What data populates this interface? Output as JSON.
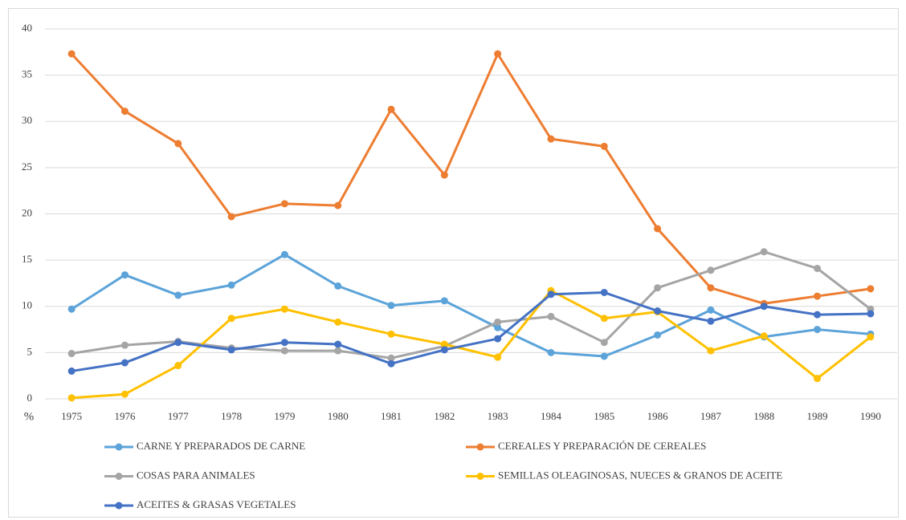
{
  "chart_data": {
    "type": "line",
    "y_label": "%",
    "categories": [
      "1975",
      "1976",
      "1977",
      "1978",
      "1979",
      "1980",
      "1981",
      "1982",
      "1983",
      "1984",
      "1985",
      "1986",
      "1987",
      "1988",
      "1989",
      "1990"
    ],
    "series": [
      {
        "name": "CARNE Y PREPARADOS DE CARNE",
        "color": "#5ba3d9",
        "values": [
          9.7,
          13.4,
          11.2,
          12.3,
          15.6,
          12.2,
          10.1,
          10.6,
          7.7,
          5.0,
          4.6,
          6.9,
          9.6,
          6.7,
          7.5,
          7.0
        ]
      },
      {
        "name": "CEREALES Y PREPARACIÓN DE CEREALES",
        "color": "#ed7d31",
        "values": [
          37.3,
          31.1,
          27.6,
          19.7,
          21.1,
          20.9,
          31.3,
          24.2,
          37.3,
          28.1,
          27.3,
          18.4,
          12.0,
          10.3,
          11.1,
          11.9
        ]
      },
      {
        "name": "COSAS PARA ANIMALES",
        "color": "#a5a5a5",
        "values": [
          4.9,
          5.8,
          6.2,
          5.5,
          5.2,
          5.2,
          4.4,
          5.7,
          8.3,
          8.9,
          6.1,
          12.0,
          13.9,
          15.9,
          14.1,
          9.7
        ]
      },
      {
        "name": "SEMILLAS OLEAGINOSAS, NUECES & GRANOS DE ACEITE",
        "color": "#ffc000",
        "values": [
          0.1,
          0.5,
          3.6,
          8.7,
          9.7,
          8.3,
          7.0,
          5.9,
          4.5,
          11.7,
          8.7,
          9.4,
          5.2,
          6.8,
          2.2,
          6.7
        ]
      },
      {
        "name": "ACEITES & GRASAS VEGETALES",
        "color": "#4472c4",
        "values": [
          3.0,
          3.9,
          6.1,
          5.3,
          6.1,
          5.9,
          3.8,
          5.3,
          6.5,
          11.3,
          11.5,
          9.5,
          8.4,
          10.0,
          9.1,
          9.2
        ]
      }
    ],
    "ylim": [
      0,
      40
    ],
    "yticks": [
      0,
      5,
      10,
      15,
      20,
      25,
      30,
      35,
      40
    ],
    "grid": true
  }
}
